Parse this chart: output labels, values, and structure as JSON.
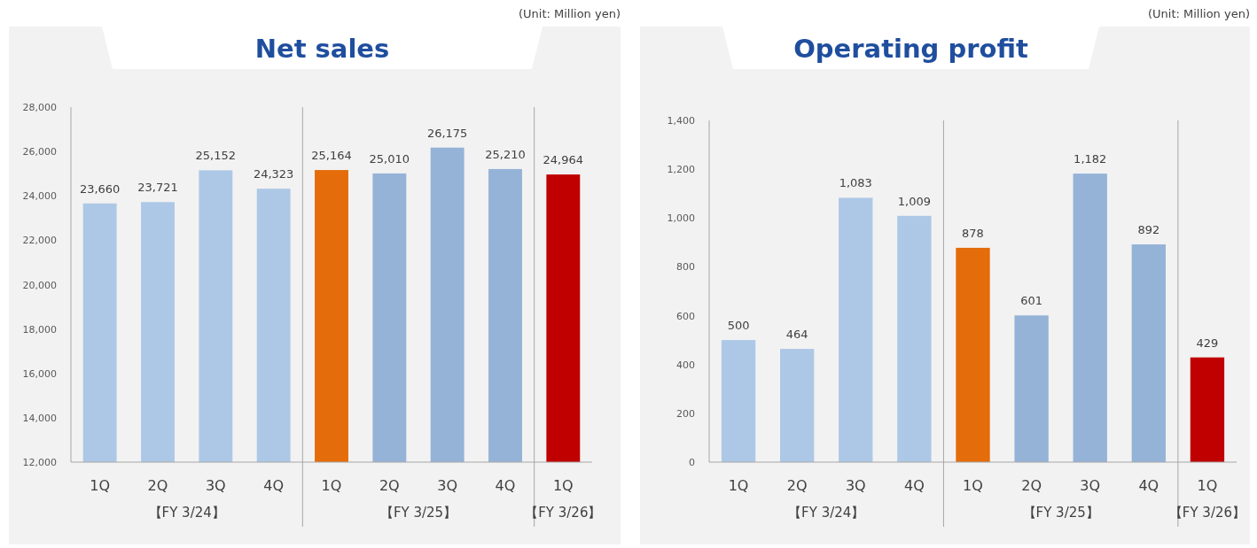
{
  "chart_data": [
    {
      "type": "bar",
      "title": "Net sales",
      "annotations": [
        "(Unit: Million yen)",
        "【FY 3/24】",
        "【FY 3/25】",
        "【FY 3/26】"
      ],
      "categories": [
        "1Q",
        "2Q",
        "3Q",
        "4Q",
        "1Q",
        "2Q",
        "3Q",
        "4Q",
        "1Q"
      ],
      "values": [
        23660,
        23721,
        25152,
        24323,
        25164,
        25010,
        26175,
        25210,
        24964
      ],
      "value_labels": [
        "23,660",
        "23,721",
        "25,152",
        "24,323",
        "25,164",
        "25,010",
        "26,175",
        "25,210",
        "24,964"
      ],
      "colors": [
        "#adc8e6",
        "#adc8e6",
        "#adc8e6",
        "#adc8e6",
        "#e46c0a",
        "#95b3d7",
        "#95b3d7",
        "#95b3d7",
        "#c00000"
      ],
      "ylim": [
        12000,
        28000
      ],
      "yticks": [
        {
          "value": 12000,
          "label": "12,000"
        },
        {
          "value": 14000,
          "label": "14,000"
        },
        {
          "value": 16000,
          "label": "16,000"
        },
        {
          "value": 18000,
          "label": "18,000"
        },
        {
          "value": 20000,
          "label": "20,000"
        },
        {
          "value": 22000,
          "label": "22,000"
        },
        {
          "value": 24000,
          "label": "24,000"
        },
        {
          "value": 26000,
          "label": "26,000"
        },
        {
          "value": 28000,
          "label": "28,000"
        }
      ]
    },
    {
      "type": "bar",
      "title": "Operating profit",
      "annotations": [
        "(Unit: Million yen)",
        "【FY 3/24】",
        "【FY 3/25】",
        "【FY 3/26】"
      ],
      "categories": [
        "1Q",
        "2Q",
        "3Q",
        "4Q",
        "1Q",
        "2Q",
        "3Q",
        "4Q",
        "1Q"
      ],
      "values": [
        500,
        464,
        1083,
        1009,
        878,
        601,
        1182,
        892,
        429
      ],
      "value_labels": [
        "500",
        "464",
        "1,083",
        "1,009",
        "878",
        "601",
        "1,182",
        "892",
        "429"
      ],
      "colors": [
        "#adc8e6",
        "#adc8e6",
        "#adc8e6",
        "#adc8e6",
        "#e46c0a",
        "#95b3d7",
        "#95b3d7",
        "#95b3d7",
        "#c00000"
      ],
      "ylim": [
        0,
        1400
      ],
      "yticks": [
        0,
        200,
        400,
        600,
        800,
        {
          "value": 1000,
          "label": "1,000"
        },
        {
          "value": 1200,
          "label": "1,200"
        },
        {
          "value": 1400,
          "label": "1,400"
        }
      ]
    }
  ]
}
